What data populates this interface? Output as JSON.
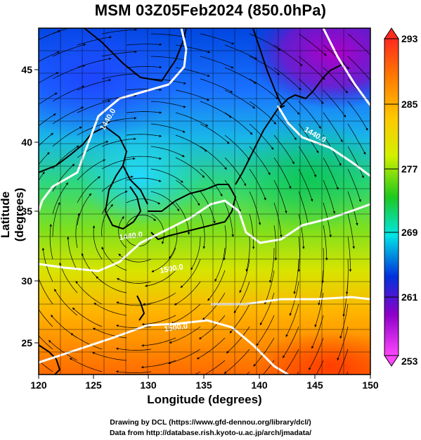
{
  "title": "MSM 03Z05Feb2024 (850.0hPa)",
  "axes": {
    "xlabel": "Longitude (degrees)",
    "ylabel": "Latitude  (degrees)",
    "x_ticks": [
      "120",
      "125",
      "130",
      "135",
      "140",
      "145",
      "150"
    ],
    "y_ticks": [
      "25",
      "30",
      "35",
      "40",
      "45"
    ]
  },
  "colorbar": {
    "ticks": [
      "293",
      "285",
      "277",
      "269",
      "261",
      "253"
    ],
    "colors": [
      "#ff3c1e",
      "#ff9a00",
      "#e6e600",
      "#1ec81e",
      "#00e6e6",
      "#0032dc",
      "#8c00c8",
      "#ff46ff"
    ]
  },
  "contours": [
    "1440.0",
    "1440.0",
    "1440.0",
    "1500.0",
    "1500.0"
  ],
  "credits": {
    "line1": "Drawing by DCL (https://www.gfd-dennou.org/library/dcl/)",
    "line2": "Data from http://database.rish.kyoto-u.ac.jp/arch/jmadata/"
  },
  "chart_data": {
    "type": "heatmap",
    "title": "MSM 03Z05Feb2024 (850.0hPa)",
    "xlabel": "Longitude (degrees)",
    "ylabel": "Latitude  (degrees)",
    "xlim": [
      120,
      150
    ],
    "ylim": [
      22.5,
      47.5
    ],
    "colorbar_range": [
      253,
      293
    ],
    "colorbar_ticks": [
      293,
      285,
      277,
      269,
      261,
      253
    ],
    "contour_labels": [
      "1440.0",
      "1440.0",
      "1440.0",
      "1500.0",
      "1500.0"
    ],
    "grid": true,
    "legend": "right colorbar"
  }
}
